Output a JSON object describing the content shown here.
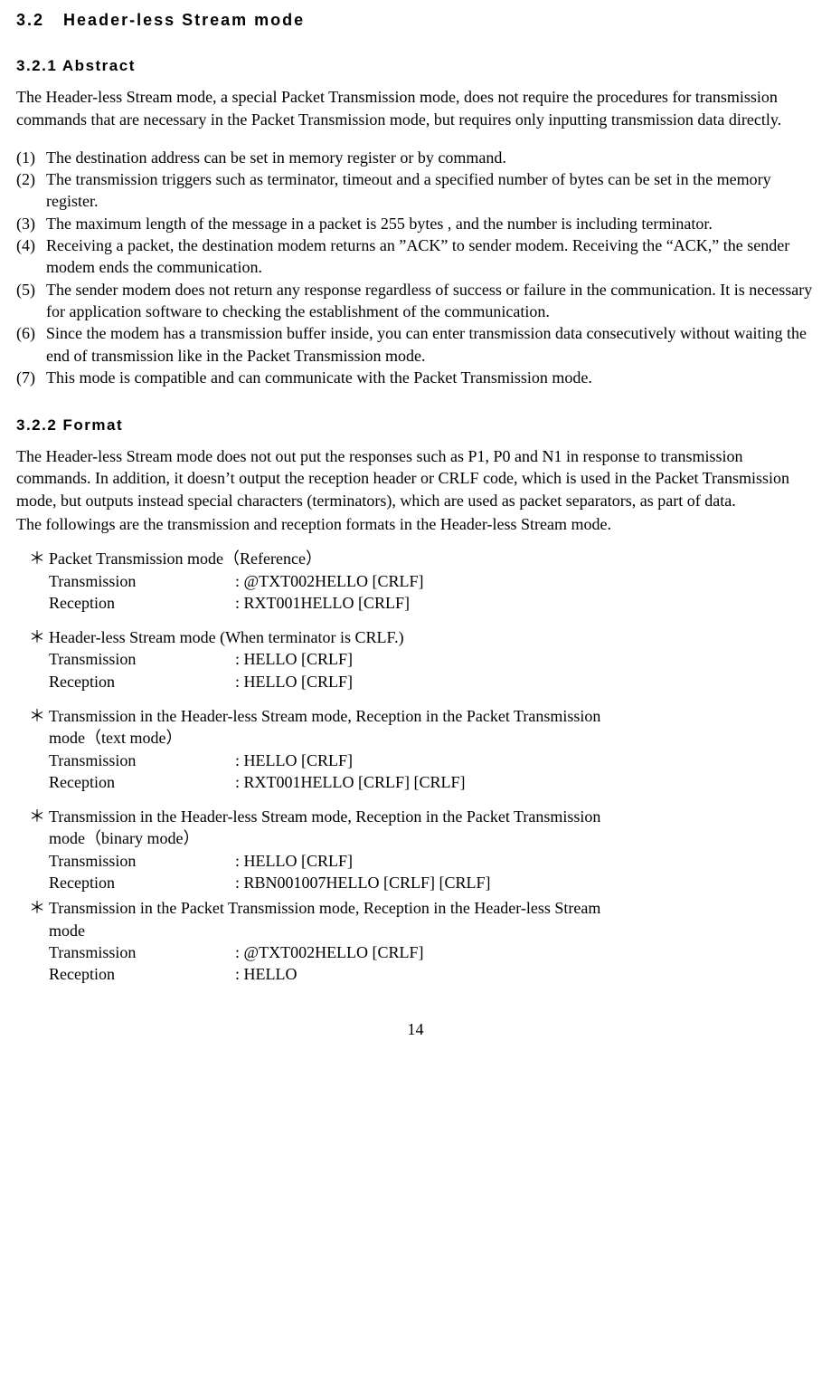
{
  "section": {
    "number": "3.2",
    "title": "Header-less Stream mode"
  },
  "abstract": {
    "heading": "3.2.1  Abstract",
    "intro": "The Header-less Stream mode, a special Packet Transmission mode, does not require the procedures for transmission commands that are necessary in the Packet Transmission mode, but requires only inputting transmission data directly.",
    "items": [
      {
        "num": "(1)",
        "text": "The destination address can be set in memory register or by command."
      },
      {
        "num": "(2)",
        "text": "The transmission triggers such as terminator, timeout and a specified number of bytes can be set in the memory register."
      },
      {
        "num": "(3)",
        "text": "The maximum length of the message in a packet is 255 bytes , and the number is including terminator."
      },
      {
        "num": "(4)",
        "text": "Receiving a packet, the destination modem returns an ”ACK” to sender modem. Receiving the “ACK,” the sender modem ends the communication."
      },
      {
        "num": "(5)",
        "text": "The sender modem does not return any response regardless of success or failure in the communication.  It is necessary for application software to checking the establishment of the communication."
      },
      {
        "num": "(6)",
        "text": "Since the modem has a transmission buffer inside, you can enter transmission data consecutively without waiting the end of transmission like in the Packet Transmission mode."
      },
      {
        "num": "(7)",
        "text": "This mode is compatible and can communicate with the Packet Transmission mode."
      }
    ]
  },
  "format": {
    "heading": "3.2.2  Format",
    "para1": "The Header-less Stream mode does not out put the responses such as P1, P0 and N1 in response to transmission commands. In addition, it doesn’t output the reception header or CRLF code, which is used in the Packet Transmission mode, but outputs instead special characters (terminators), which are used as packet separators, as part of data.",
    "para2": "The followings are the transmission and reception formats in the Header-less Stream mode.",
    "bullet": "＊",
    "examples": [
      {
        "title_line1": "Packet Transmission mode（Reference）",
        "title_line2": "",
        "tx_label": "Transmission",
        "tx_value": ": @TXT002HELLO [CRLF]",
        "rx_label": "Reception",
        "rx_value": ": RXT001HELLO [CRLF]",
        "tight": false
      },
      {
        "title_line1": "Header-less Stream mode (When terminator is CRLF.)",
        "title_line2": "",
        "tx_label": "Transmission",
        "tx_value": ": HELLO [CRLF]",
        "rx_label": "Reception",
        "rx_value": ": HELLO [CRLF]",
        "tight": false
      },
      {
        "title_line1": "Transmission in the Header-less Stream mode, Reception in the Packet Transmission",
        "title_line2": "mode（text mode）",
        "tx_label": "Transmission",
        "tx_value": ": HELLO [CRLF]",
        "rx_label": "Reception",
        "rx_value": ": RXT001HELLO [CRLF] [CRLF]",
        "tight": false
      },
      {
        "title_line1": "Transmission in the Header-less Stream mode, Reception in the Packet Transmission",
        "title_line2": "mode（binary mode）",
        "tx_label": "Transmission",
        "tx_value": ": HELLO [CRLF]",
        "rx_label": "Reception",
        "rx_value": ": RBN001007HELLO [CRLF] [CRLF]",
        "tight": false
      },
      {
        "title_line1": "Transmission in the Packet Transmission mode, Reception in the Header-less Stream",
        "title_line2": "mode",
        "tx_label": "Transmission",
        "tx_value": ": @TXT002HELLO [CRLF]",
        "rx_label": "Reception",
        "rx_value": ": HELLO",
        "tight": true
      }
    ]
  },
  "page_number": "14"
}
